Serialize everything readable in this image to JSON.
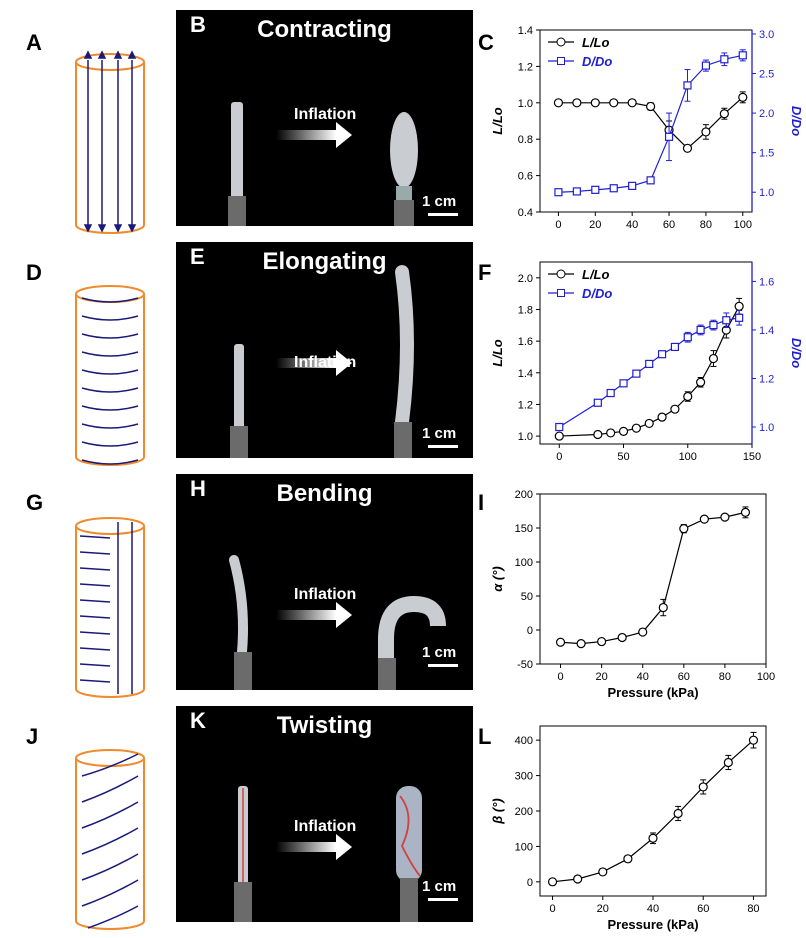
{
  "rows": [
    {
      "schematic_letter": "A",
      "photo_letter": "B",
      "title": "Contracting",
      "inflation": "Inflation",
      "scale": "1 cm",
      "chart_letter": "C"
    },
    {
      "schematic_letter": "D",
      "photo_letter": "E",
      "title": "Elongating",
      "inflation": "Inflation",
      "scale": "1 cm",
      "chart_letter": "F"
    },
    {
      "schematic_letter": "G",
      "photo_letter": "H",
      "title": "Bending",
      "inflation": "Inflation",
      "scale": "1 cm",
      "chart_letter": "I"
    },
    {
      "schematic_letter": "J",
      "photo_letter": "K",
      "title": "Twisting",
      "inflation": "Inflation",
      "scale": "1 cm",
      "chart_letter": "L"
    }
  ],
  "colors": {
    "tube": "#f08a2c",
    "arrow": "#1a1a7a",
    "series2": "#1f1fd0",
    "photo_bg": "#000000"
  },
  "chart_data": [
    {
      "type": "line",
      "xlim": [
        -10,
        105
      ],
      "xticks": [
        0,
        20,
        40,
        60,
        80,
        100
      ],
      "xlabel": "",
      "ylim": [
        0.4,
        1.4
      ],
      "yticks": [
        0.4,
        0.6,
        0.8,
        1.0,
        1.2,
        1.4
      ],
      "ylabel": "L/Lo",
      "y2lim": [
        0.75,
        3.05
      ],
      "y2ticks": [
        1.0,
        1.5,
        2.0,
        2.5,
        3.0
      ],
      "y2label": "D/Do",
      "legend": "top-left",
      "series": [
        {
          "name": "L/Lo",
          "axis": "left",
          "marker": "circle",
          "x": [
            0,
            10,
            20,
            30,
            40,
            50,
            60,
            70,
            80,
            90,
            100
          ],
          "y": [
            1.0,
            1.0,
            1.0,
            1.0,
            1.0,
            0.98,
            0.85,
            0.75,
            0.84,
            0.94,
            1.03
          ],
          "err": [
            0.01,
            0.01,
            0.01,
            0.01,
            0.01,
            0.02,
            0.05,
            0.01,
            0.04,
            0.03,
            0.03
          ]
        },
        {
          "name": "D/Do",
          "axis": "right",
          "marker": "square",
          "x": [
            0,
            10,
            20,
            30,
            40,
            50,
            60,
            70,
            80,
            90,
            100
          ],
          "y": [
            1.0,
            1.01,
            1.03,
            1.05,
            1.08,
            1.15,
            1.7,
            2.35,
            2.6,
            2.68,
            2.73
          ],
          "err": [
            0.02,
            0.02,
            0.02,
            0.02,
            0.02,
            0.04,
            0.3,
            0.2,
            0.07,
            0.08,
            0.07
          ]
        }
      ]
    },
    {
      "type": "line",
      "xlim": [
        -15,
        150
      ],
      "xticks": [
        0,
        50,
        100,
        150
      ],
      "xlabel": "",
      "ylim": [
        0.95,
        2.1
      ],
      "yticks": [
        1.0,
        1.2,
        1.4,
        1.6,
        1.8,
        2.0
      ],
      "ylabel": "L/Lo",
      "y2lim": [
        0.93,
        1.68
      ],
      "y2ticks": [
        1.0,
        1.2,
        1.4,
        1.6
      ],
      "y2label": "D/Do",
      "legend": "top-left",
      "series": [
        {
          "name": "L/Lo",
          "axis": "left",
          "marker": "circle",
          "x": [
            0,
            30,
            40,
            50,
            60,
            70,
            80,
            90,
            100,
            110,
            120,
            130,
            140
          ],
          "y": [
            1.0,
            1.01,
            1.02,
            1.03,
            1.05,
            1.08,
            1.12,
            1.17,
            1.25,
            1.34,
            1.49,
            1.67,
            1.82
          ],
          "err": [
            0.01,
            0.01,
            0.01,
            0.01,
            0.01,
            0.01,
            0.02,
            0.02,
            0.03,
            0.03,
            0.05,
            0.05,
            0.05
          ]
        },
        {
          "name": "D/Do",
          "axis": "right",
          "marker": "square",
          "x": [
            0,
            30,
            40,
            50,
            60,
            70,
            80,
            90,
            100,
            110,
            120,
            130,
            140
          ],
          "y": [
            1.0,
            1.1,
            1.14,
            1.18,
            1.22,
            1.26,
            1.3,
            1.33,
            1.37,
            1.4,
            1.42,
            1.44,
            1.45
          ],
          "err": [
            0.01,
            0.01,
            0.01,
            0.01,
            0.01,
            0.01,
            0.01,
            0.01,
            0.02,
            0.02,
            0.02,
            0.03,
            0.03
          ]
        }
      ]
    },
    {
      "type": "line",
      "xlim": [
        -10,
        100
      ],
      "xticks": [
        0,
        20,
        40,
        60,
        80,
        100
      ],
      "xlabel": "Pressure (kPa)",
      "ylim": [
        -50,
        200
      ],
      "yticks": [
        -50,
        0,
        50,
        100,
        150,
        200
      ],
      "ylabel": "α (°)",
      "series": [
        {
          "name": "",
          "axis": "left",
          "marker": "circle",
          "x": [
            0,
            10,
            20,
            30,
            40,
            50,
            60,
            70,
            80,
            90
          ],
          "y": [
            -18,
            -20,
            -17,
            -11,
            -3,
            33,
            149,
            163,
            166,
            173
          ],
          "err": [
            3,
            3,
            3,
            3,
            3,
            12,
            6,
            3,
            3,
            8
          ]
        }
      ]
    },
    {
      "type": "line",
      "xlim": [
        -5,
        85
      ],
      "xticks": [
        0,
        20,
        40,
        60,
        80
      ],
      "xlabel": "Pressure (kPa)",
      "ylim": [
        -40,
        440
      ],
      "yticks": [
        0,
        100,
        200,
        300,
        400
      ],
      "ylabel": "β (°)",
      "series": [
        {
          "name": "",
          "axis": "left",
          "marker": "circle",
          "x": [
            0,
            10,
            20,
            30,
            40,
            50,
            60,
            70,
            80
          ],
          "y": [
            0,
            8,
            28,
            65,
            123,
            193,
            268,
            337,
            400
          ],
          "err": [
            3,
            5,
            5,
            8,
            15,
            20,
            20,
            20,
            22
          ]
        }
      ]
    }
  ]
}
